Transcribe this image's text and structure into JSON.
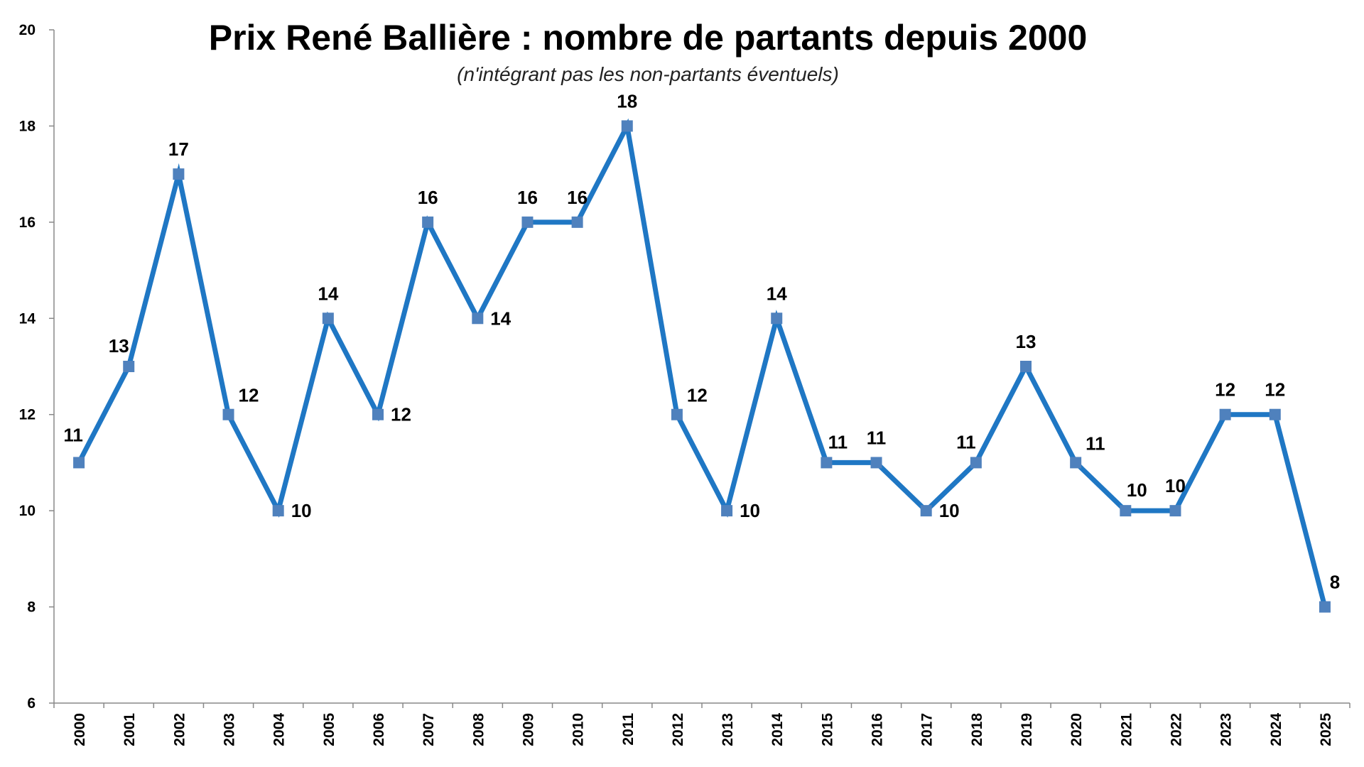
{
  "chart_data": {
    "type": "line",
    "title": "Prix René Ballière : nombre de partants depuis 2000",
    "subtitle": "(n'intégrant pas les non-partants éventuels)",
    "xlabel": "",
    "ylabel": "",
    "categories": [
      "2000",
      "2001",
      "2002",
      "2003",
      "2004",
      "2005",
      "2006",
      "2007",
      "2008",
      "2009",
      "2010",
      "2011",
      "2012",
      "2013",
      "2014",
      "2015",
      "2016",
      "2017",
      "2018",
      "2019",
      "2020",
      "2021",
      "2022",
      "2023",
      "2024",
      "2025"
    ],
    "series": [
      {
        "values": [
          11,
          13,
          17,
          12,
          10,
          14,
          12,
          16,
          14,
          16,
          16,
          18,
          12,
          10,
          14,
          11,
          11,
          10,
          11,
          13,
          11,
          10,
          10,
          12,
          12,
          8
        ]
      }
    ],
    "ylim": [
      6,
      20
    ],
    "yticks": [
      6,
      8,
      10,
      12,
      14,
      16,
      18,
      20
    ],
    "grid": false,
    "legend": "none",
    "line_color": "#1F77C4",
    "marker_color": "#4F81BD",
    "marker": "square",
    "data_labels": true
  }
}
